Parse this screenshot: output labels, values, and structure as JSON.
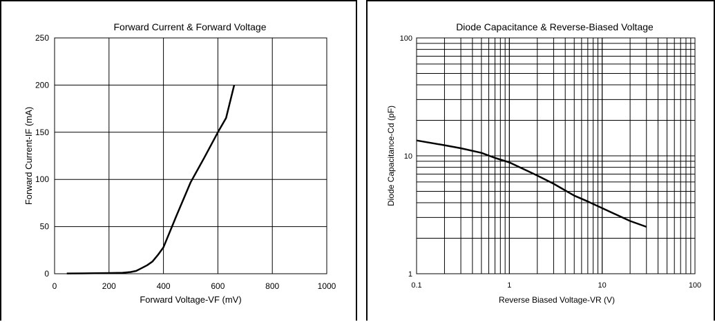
{
  "chart_data": [
    {
      "type": "line",
      "title": "Forward Current & Forward Voltage",
      "xlabel": "Forward Voltage-VF (mV)",
      "ylabel": "Forward Current-IF (mA)",
      "xlim": [
        0,
        1000
      ],
      "ylim": [
        0,
        250
      ],
      "xticks": [
        "0",
        "200",
        "400",
        "600",
        "800",
        "1000"
      ],
      "yticks": [
        "0",
        "50",
        "100",
        "150",
        "200",
        "250"
      ],
      "grid": true,
      "series": [
        {
          "x": [
            45,
            100,
            200,
            250,
            280,
            300,
            320,
            340,
            360,
            380,
            400,
            450,
            500,
            550,
            600,
            630,
            660
          ],
          "y": [
            0.3,
            0.4,
            0.7,
            1,
            1.8,
            3,
            6,
            9,
            13,
            20,
            28,
            63,
            97,
            123,
            150,
            165,
            200
          ]
        }
      ]
    },
    {
      "type": "line",
      "title": "Diode Capacitance & Reverse-Biased Voltage",
      "xlabel": "Reverse Biased Voltage-VR (V)",
      "ylabel": "Diode Capacitance-Cd (pF)",
      "xscale": "log",
      "yscale": "log",
      "xlim": [
        0.1,
        100
      ],
      "ylim": [
        1,
        100
      ],
      "xticks": [
        "0.1",
        "1",
        "10",
        "100"
      ],
      "yticks": [
        "1",
        "10",
        "100"
      ],
      "grid": true,
      "series": [
        {
          "x": [
            0.1,
            0.2,
            0.3,
            0.5,
            0.7,
            1,
            2,
            3,
            5,
            7,
            10,
            20,
            30
          ],
          "y": [
            13.5,
            12.3,
            11.6,
            10.6,
            9.6,
            8.8,
            6.8,
            5.8,
            4.6,
            4.1,
            3.6,
            2.8,
            2.5
          ]
        }
      ]
    }
  ]
}
